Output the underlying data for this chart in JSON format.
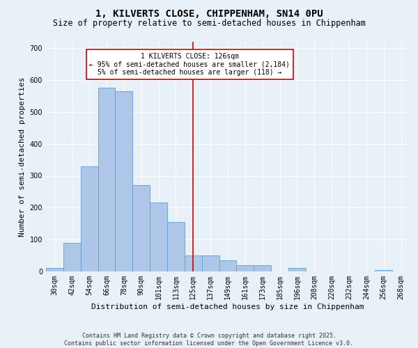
{
  "title1": "1, KILVERTS CLOSE, CHIPPENHAM, SN14 0PU",
  "title2": "Size of property relative to semi-detached houses in Chippenham",
  "xlabel": "Distribution of semi-detached houses by size in Chippenham",
  "ylabel": "Number of semi-detached properties",
  "categories": [
    "30sqm",
    "42sqm",
    "54sqm",
    "66sqm",
    "78sqm",
    "90sqm",
    "101sqm",
    "113sqm",
    "125sqm",
    "137sqm",
    "149sqm",
    "161sqm",
    "173sqm",
    "185sqm",
    "196sqm",
    "208sqm",
    "220sqm",
    "232sqm",
    "244sqm",
    "256sqm",
    "268sqm"
  ],
  "values": [
    10,
    90,
    330,
    575,
    565,
    270,
    215,
    155,
    50,
    50,
    35,
    20,
    20,
    0,
    10,
    0,
    0,
    0,
    0,
    5,
    0
  ],
  "bar_color": "#aec6e8",
  "bar_edge_color": "#5a9fd4",
  "vline_x": 8,
  "vline_color": "#cc0000",
  "annotation_text": "1 KILVERTS CLOSE: 126sqm\n← 95% of semi-detached houses are smaller (2,184)\n5% of semi-detached houses are larger (118) →",
  "ylim": [
    0,
    720
  ],
  "yticks": [
    0,
    100,
    200,
    300,
    400,
    500,
    600,
    700
  ],
  "background_color": "#e8f0f8",
  "footer_text": "Contains HM Land Registry data © Crown copyright and database right 2025.\nContains public sector information licensed under the Open Government Licence v3.0.",
  "title1_fontsize": 10,
  "title2_fontsize": 8.5,
  "xlabel_fontsize": 8,
  "ylabel_fontsize": 8,
  "annotation_fontsize": 7,
  "footer_fontsize": 6,
  "tick_fontsize": 7
}
